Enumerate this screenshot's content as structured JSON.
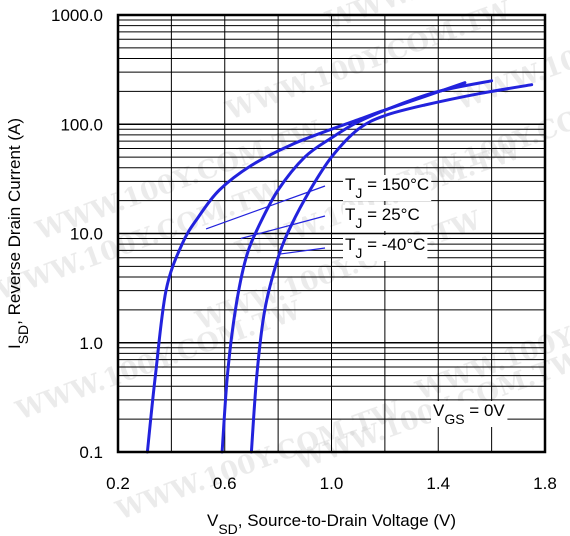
{
  "chart_data": {
    "type": "line",
    "xlabel_main": "V",
    "xlabel_sub": "SD",
    "xlabel_rest": ", Source-to-Drain Voltage (V)",
    "ylabel_main": "I",
    "ylabel_sub": "SD",
    "ylabel_rest": ", Reverse Drain Current (A)",
    "xlim": [
      0.2,
      1.8
    ],
    "ylim": [
      0.1,
      1000
    ],
    "y_scale": "log",
    "x_ticks": [
      "0.2",
      "0.6",
      "1.0",
      "1.4",
      "1.8"
    ],
    "y_ticks": [
      "0.1",
      "1.0",
      "10.0",
      "100.0",
      "1000.0"
    ],
    "grid": true,
    "series": [
      {
        "name": "T_J = 150°C",
        "color": "#2222dd",
        "points": [
          [
            0.31,
            0.1
          ],
          [
            0.34,
            0.5
          ],
          [
            0.38,
            3
          ],
          [
            0.44,
            8
          ],
          [
            0.5,
            14
          ],
          [
            0.58,
            25
          ],
          [
            0.7,
            42
          ],
          [
            0.85,
            65
          ],
          [
            1.0,
            90
          ],
          [
            1.1,
            110
          ],
          [
            1.2,
            135
          ],
          [
            1.35,
            180
          ],
          [
            1.5,
            240
          ]
        ]
      },
      {
        "name": "T_J = 25°C",
        "color": "#2222dd",
        "points": [
          [
            0.59,
            0.1
          ],
          [
            0.61,
            0.5
          ],
          [
            0.64,
            2
          ],
          [
            0.68,
            6
          ],
          [
            0.73,
            12
          ],
          [
            0.8,
            25
          ],
          [
            0.9,
            50
          ],
          [
            1.0,
            75
          ],
          [
            1.1,
            105
          ],
          [
            1.25,
            150
          ],
          [
            1.4,
            200
          ],
          [
            1.6,
            250
          ]
        ]
      },
      {
        "name": "T_J = -40°C",
        "color": "#2222dd",
        "points": [
          [
            0.7,
            0.1
          ],
          [
            0.72,
            0.5
          ],
          [
            0.75,
            2
          ],
          [
            0.8,
            6
          ],
          [
            0.85,
            12
          ],
          [
            0.92,
            25
          ],
          [
            1.0,
            50
          ],
          [
            1.1,
            90
          ],
          [
            1.2,
            120
          ],
          [
            1.35,
            150
          ],
          [
            1.55,
            190
          ],
          [
            1.75,
            230
          ]
        ]
      }
    ],
    "annotations": {
      "t150_main": "T",
      "t150_sub": "J",
      "t150_rest": " = 150°C",
      "t25_main": "T",
      "t25_sub": "J",
      "t25_rest": " = 25°C",
      "tm40_main": "T",
      "tm40_sub": "J",
      "tm40_rest": " = -40°C",
      "vgs_main": "V",
      "vgs_sub": "GS",
      "vgs_rest": " = 0V"
    }
  },
  "watermark": "WWW.100Y.COM.TW"
}
